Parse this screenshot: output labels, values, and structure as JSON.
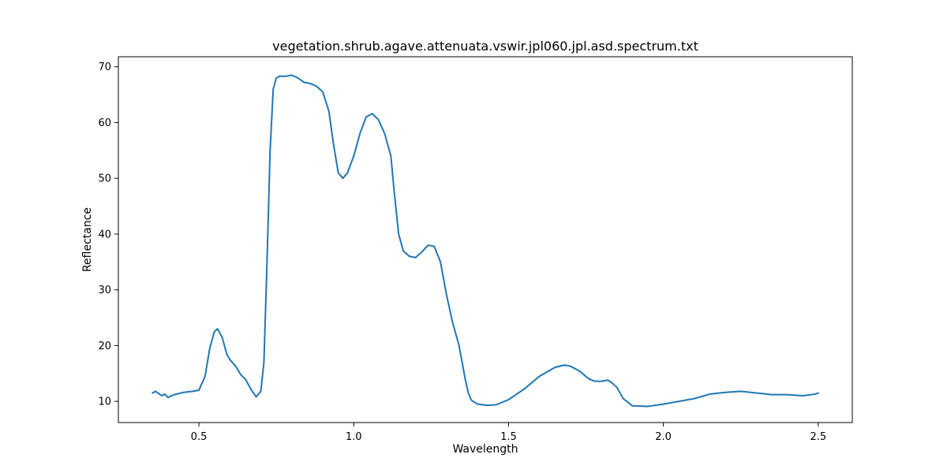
{
  "chart_data": {
    "type": "line",
    "title": "vegetation.shrub.agave.attenuata.vswir.jpl060.jpl.asd.spectrum.txt",
    "xlabel": "Wavelength",
    "ylabel": "Reflectance",
    "xlim": [
      0.24,
      2.61
    ],
    "ylim": [
      6.2,
      71.8
    ],
    "xticks": [
      "0.5",
      "1.0",
      "1.5",
      "2.0",
      "2.5"
    ],
    "yticks": [
      "10",
      "20",
      "30",
      "40",
      "50",
      "60",
      "70"
    ],
    "grid": false,
    "legend": "none",
    "series": [
      {
        "color": "#1f77b4",
        "x": [
          0.35,
          0.36,
          0.37,
          0.38,
          0.39,
          0.4,
          0.42,
          0.45,
          0.48,
          0.5,
          0.52,
          0.535,
          0.55,
          0.56,
          0.575,
          0.59,
          0.6,
          0.62,
          0.635,
          0.65,
          0.67,
          0.685,
          0.7,
          0.71,
          0.72,
          0.73,
          0.74,
          0.75,
          0.76,
          0.78,
          0.8,
          0.82,
          0.84,
          0.86,
          0.88,
          0.9,
          0.92,
          0.935,
          0.95,
          0.965,
          0.98,
          1.0,
          1.02,
          1.04,
          1.06,
          1.08,
          1.1,
          1.12,
          1.13,
          1.145,
          1.16,
          1.18,
          1.2,
          1.22,
          1.24,
          1.26,
          1.28,
          1.3,
          1.32,
          1.34,
          1.36,
          1.37,
          1.38,
          1.4,
          1.43,
          1.46,
          1.5,
          1.55,
          1.6,
          1.65,
          1.68,
          1.7,
          1.73,
          1.76,
          1.78,
          1.8,
          1.82,
          1.83,
          1.85,
          1.87,
          1.9,
          1.95,
          2.0,
          2.05,
          2.1,
          2.15,
          2.2,
          2.25,
          2.3,
          2.35,
          2.4,
          2.45,
          2.49,
          2.5
        ],
        "y": [
          11.5,
          11.8,
          11.4,
          11.0,
          11.3,
          10.7,
          11.2,
          11.6,
          11.8,
          12.0,
          14.5,
          19.5,
          22.5,
          23.0,
          21.5,
          18.5,
          17.5,
          16.2,
          14.8,
          14.0,
          12.0,
          10.8,
          11.8,
          17.0,
          35.0,
          55.0,
          66.0,
          68.0,
          68.3,
          68.3,
          68.5,
          68.0,
          67.2,
          67.0,
          66.5,
          65.5,
          62.0,
          56.0,
          51.0,
          50.0,
          51.0,
          54.0,
          58.0,
          61.0,
          61.6,
          60.5,
          58.0,
          54.0,
          48.0,
          40.0,
          37.0,
          36.0,
          35.8,
          36.8,
          38.0,
          37.8,
          35.0,
          29.0,
          24.0,
          20.0,
          14.0,
          11.5,
          10.2,
          9.5,
          9.3,
          9.4,
          10.3,
          12.2,
          14.5,
          16.1,
          16.5,
          16.3,
          15.4,
          14.0,
          13.6,
          13.6,
          13.8,
          13.5,
          12.5,
          10.5,
          9.2,
          9.1,
          9.5,
          10.0,
          10.5,
          11.3,
          11.6,
          11.8,
          11.5,
          11.2,
          11.2,
          11.0,
          11.3,
          11.5
        ]
      }
    ]
  }
}
